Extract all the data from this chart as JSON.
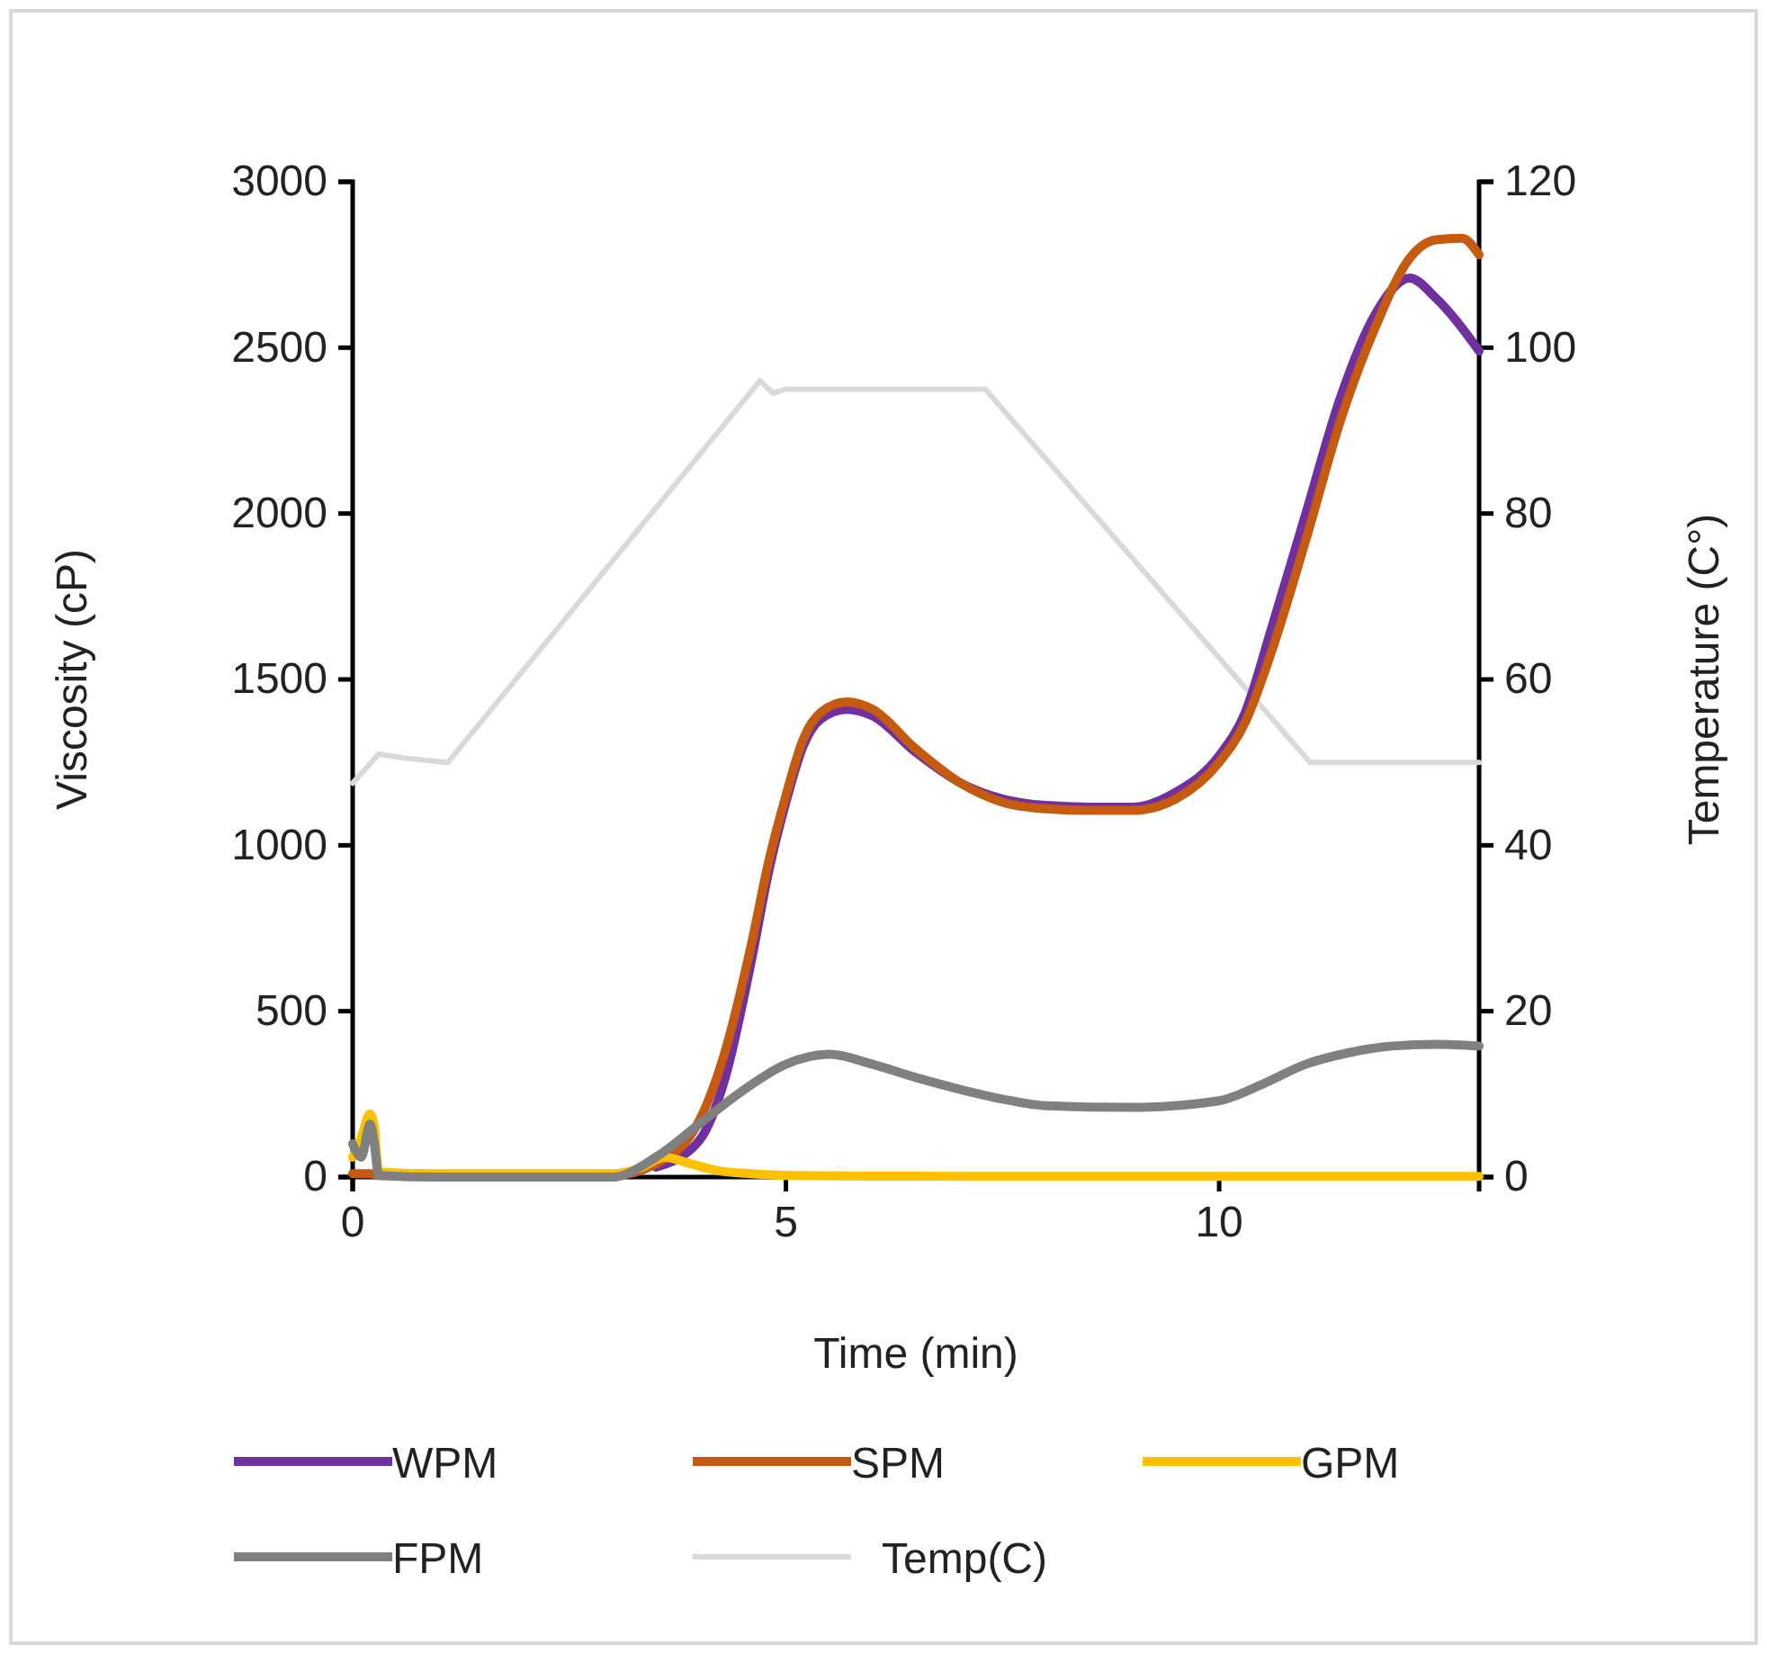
{
  "chart_data": {
    "type": "line",
    "xlabel": "Time (min)",
    "ylabel": "Viscosity (cP)",
    "y2label": "Temperature (C°)",
    "xlim": [
      0,
      13
    ],
    "xticks": [
      0,
      5,
      10
    ],
    "ylim": [
      0,
      3000
    ],
    "yticks": [
      0,
      500,
      1000,
      1500,
      2000,
      2500,
      3000
    ],
    "y2lim": [
      0,
      120
    ],
    "y2ticks": [
      0,
      20,
      40,
      60,
      80,
      100,
      120
    ],
    "legend": "bottom",
    "grid": false,
    "series": [
      {
        "name": "WPM",
        "color": "#7030a0",
        "x": [
          3.5,
          4,
          4.3,
          4.6,
          4.8,
          5,
          5.2,
          5.4,
          5.7,
          6,
          6.5,
          7,
          7.5,
          8,
          8.5,
          9,
          9.5,
          10,
          10.3,
          10.6,
          11,
          11.4,
          11.8,
          12.2,
          12.5,
          13
        ],
        "values": [
          30,
          110,
          300,
          650,
          920,
          1130,
          1300,
          1380,
          1410,
          1390,
          1280,
          1190,
          1140,
          1120,
          1115,
          1115,
          1160,
          1270,
          1400,
          1650,
          2000,
          2350,
          2600,
          2710,
          2650,
          2490
        ]
      },
      {
        "name": "SPM",
        "color": "#c55a11",
        "x": [
          0,
          0.1,
          0.2,
          0.3,
          1,
          2,
          3,
          3.5,
          4,
          4.3,
          4.6,
          4.8,
          5,
          5.2,
          5.4,
          5.7,
          6,
          6.5,
          7,
          7.5,
          8,
          8.5,
          9,
          9.5,
          10,
          10.3,
          10.6,
          11,
          11.4,
          11.8,
          12.2,
          12.5,
          12.8,
          13
        ],
        "values": [
          10,
          10,
          10,
          5,
          5,
          5,
          5,
          40,
          170,
          380,
          700,
          950,
          1150,
          1320,
          1400,
          1432,
          1410,
          1290,
          1190,
          1130,
          1110,
          1105,
          1105,
          1140,
          1250,
          1370,
          1580,
          1920,
          2280,
          2560,
          2770,
          2825,
          2830,
          2780
        ]
      },
      {
        "name": "GPM",
        "color": "#ffc000",
        "x": [
          0,
          0.1,
          0.2,
          0.25,
          0.3,
          1,
          2,
          3,
          3.3,
          3.6,
          3.9,
          4.2,
          4.6,
          5,
          6,
          8,
          10,
          12,
          13
        ],
        "values": [
          60,
          120,
          190,
          150,
          15,
          10,
          10,
          10,
          25,
          60,
          40,
          20,
          10,
          5,
          3,
          2,
          2,
          2,
          2
        ]
      },
      {
        "name": "FPM",
        "color": "#808080",
        "x": [
          0,
          0.1,
          0.2,
          0.25,
          0.3,
          1,
          2,
          3,
          3.5,
          4,
          4.5,
          5,
          5.5,
          6,
          6.5,
          7,
          7.5,
          8,
          9,
          10,
          10.5,
          11,
          11.5,
          12,
          12.5,
          13
        ],
        "values": [
          100,
          60,
          160,
          100,
          5,
          0,
          0,
          0,
          60,
          160,
          260,
          340,
          370,
          340,
          300,
          265,
          235,
          215,
          210,
          230,
          280,
          340,
          375,
          395,
          400,
          395
        ]
      },
      {
        "name": "Temp(C)",
        "color": "#d9d9d9",
        "axis": "y2",
        "x": [
          0,
          0.3,
          0.6,
          1.1,
          4.7,
          4.85,
          5,
          7.3,
          11.05,
          13
        ],
        "values": [
          47.5,
          51,
          50.5,
          50,
          96,
          94.5,
          95,
          95,
          50,
          50
        ]
      }
    ]
  }
}
